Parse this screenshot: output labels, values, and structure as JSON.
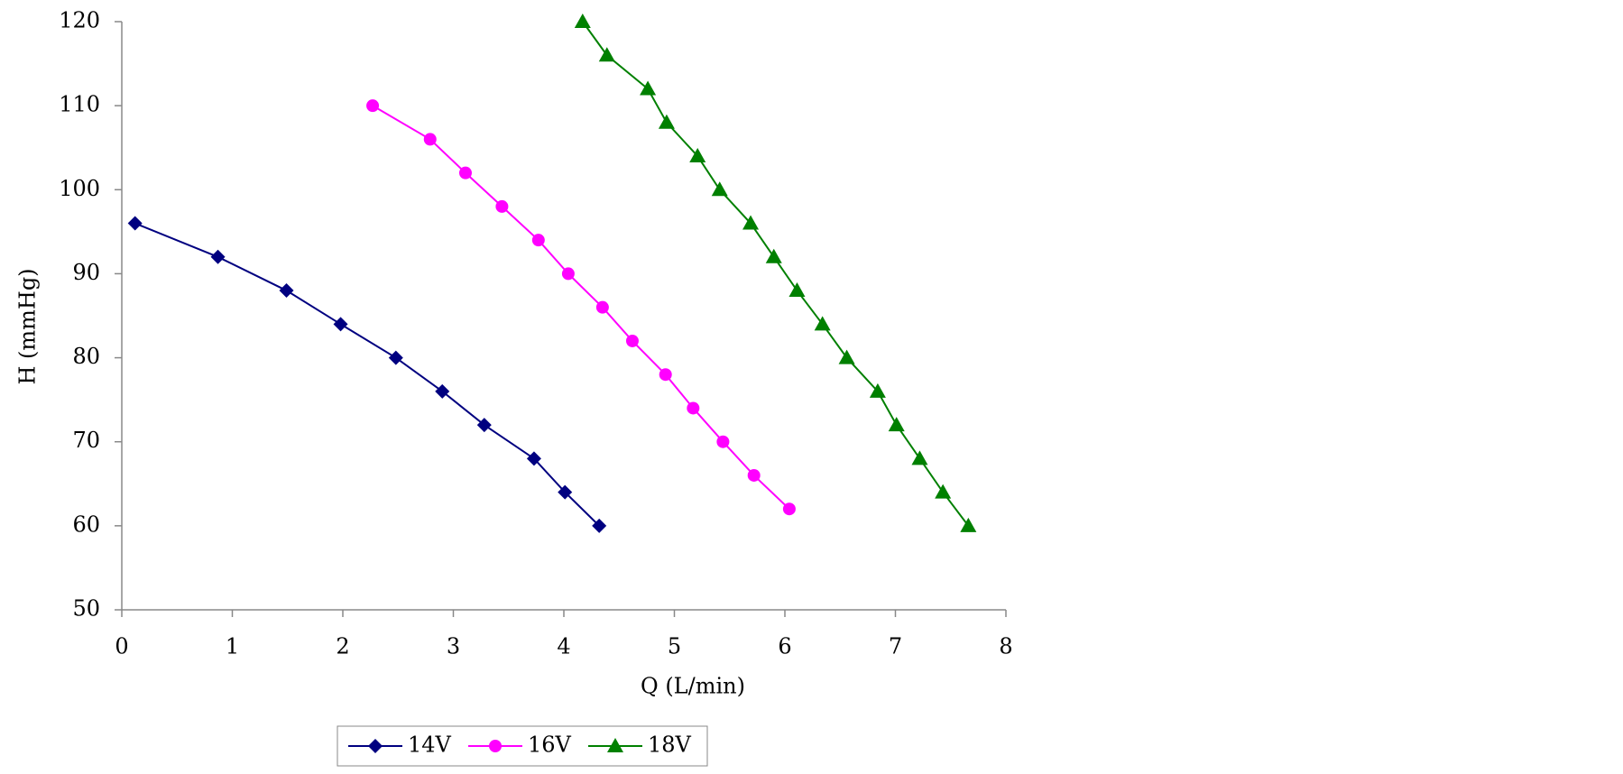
{
  "chart_data": {
    "type": "line",
    "xlabel": "Q (L/min)",
    "ylabel": "H (mmHg)",
    "xlim": [
      0,
      8
    ],
    "xticks": [
      0,
      1,
      2,
      3,
      4,
      5,
      6,
      7,
      8
    ],
    "ylim": [
      50,
      120
    ],
    "yticks": [
      50,
      60,
      70,
      80,
      90,
      100,
      110,
      120
    ],
    "legend": "bottom",
    "series": [
      {
        "name": "14V",
        "color": "#000080",
        "marker": "diamond",
        "x": [
          0.12,
          0.87,
          1.49,
          1.98,
          2.48,
          2.9,
          3.28,
          3.73,
          4.01,
          4.32
        ],
        "values": [
          96,
          92,
          88,
          84,
          80,
          76,
          72,
          68,
          64,
          60
        ]
      },
      {
        "name": "16V",
        "color": "#ff00ff",
        "marker": "circle",
        "x": [
          2.27,
          2.79,
          3.11,
          3.44,
          3.77,
          4.04,
          4.35,
          4.62,
          4.92,
          5.17,
          5.44,
          5.72,
          6.04
        ],
        "values": [
          110,
          106,
          102,
          98,
          94,
          90,
          86,
          82,
          78,
          74,
          70,
          66,
          62
        ]
      },
      {
        "name": "18V",
        "color": "#008000",
        "marker": "triangle",
        "x": [
          4.17,
          4.39,
          4.76,
          4.93,
          5.21,
          5.41,
          5.69,
          5.9,
          6.11,
          6.34,
          6.56,
          6.84,
          7.01,
          7.22,
          7.43,
          7.66
        ],
        "values": [
          120,
          116,
          112,
          108,
          104,
          100,
          96,
          92,
          88,
          84,
          80,
          76,
          72,
          68,
          64,
          60
        ]
      }
    ]
  }
}
